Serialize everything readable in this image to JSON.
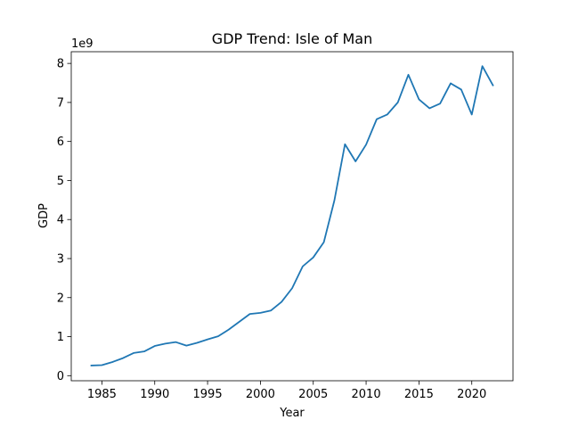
{
  "chart_data": {
    "type": "line",
    "title": "GDP Trend: Isle of Man",
    "xlabel": "Year",
    "ylabel": "GDP",
    "y_offset_label": "1e9",
    "xlim": [
      1982.1,
      2023.9
    ],
    "ylim": [
      -130000000.0,
      8300000000.0
    ],
    "xticks": [
      1985,
      1990,
      1995,
      2000,
      2005,
      2010,
      2015,
      2020
    ],
    "yticks": [
      0,
      1000000000.0,
      2000000000.0,
      3000000000.0,
      4000000000.0,
      5000000000.0,
      6000000000.0,
      7000000000.0,
      8000000000.0
    ],
    "ytick_labels": [
      "0",
      "1",
      "2",
      "3",
      "4",
      "5",
      "6",
      "7",
      "8"
    ],
    "grid": false,
    "line_color": "#1f77b4",
    "series": [
      {
        "x": [
          1984,
          1985,
          1986,
          1987,
          1988,
          1989,
          1990,
          1991,
          1992,
          1993,
          1994,
          1995,
          1996,
          1997,
          1998,
          1999,
          2000,
          2001,
          2002,
          2003,
          2004,
          2005,
          2006,
          2007,
          2008,
          2009,
          2010,
          2011,
          2012,
          2013,
          2014,
          2015,
          2016,
          2017,
          2018,
          2019,
          2020,
          2021,
          2022
        ],
        "values": [
          260000000.0,
          270000000.0,
          350000000.0,
          450000000.0,
          580000000.0,
          620000000.0,
          760000000.0,
          820000000.0,
          860000000.0,
          770000000.0,
          840000000.0,
          930000000.0,
          1010000000.0,
          1180000000.0,
          1380000000.0,
          1580000000.0,
          1610000000.0,
          1670000000.0,
          1890000000.0,
          2240000000.0,
          2800000000.0,
          3030000000.0,
          3420000000.0,
          4490000000.0,
          5930000000.0,
          5490000000.0,
          5920000000.0,
          6570000000.0,
          6690000000.0,
          7000000000.0,
          7710000000.0,
          7080000000.0,
          6850000000.0,
          6970000000.0,
          7490000000.0,
          7330000000.0,
          6690000000.0,
          7930000000.0,
          7440000000.0
        ]
      }
    ]
  }
}
